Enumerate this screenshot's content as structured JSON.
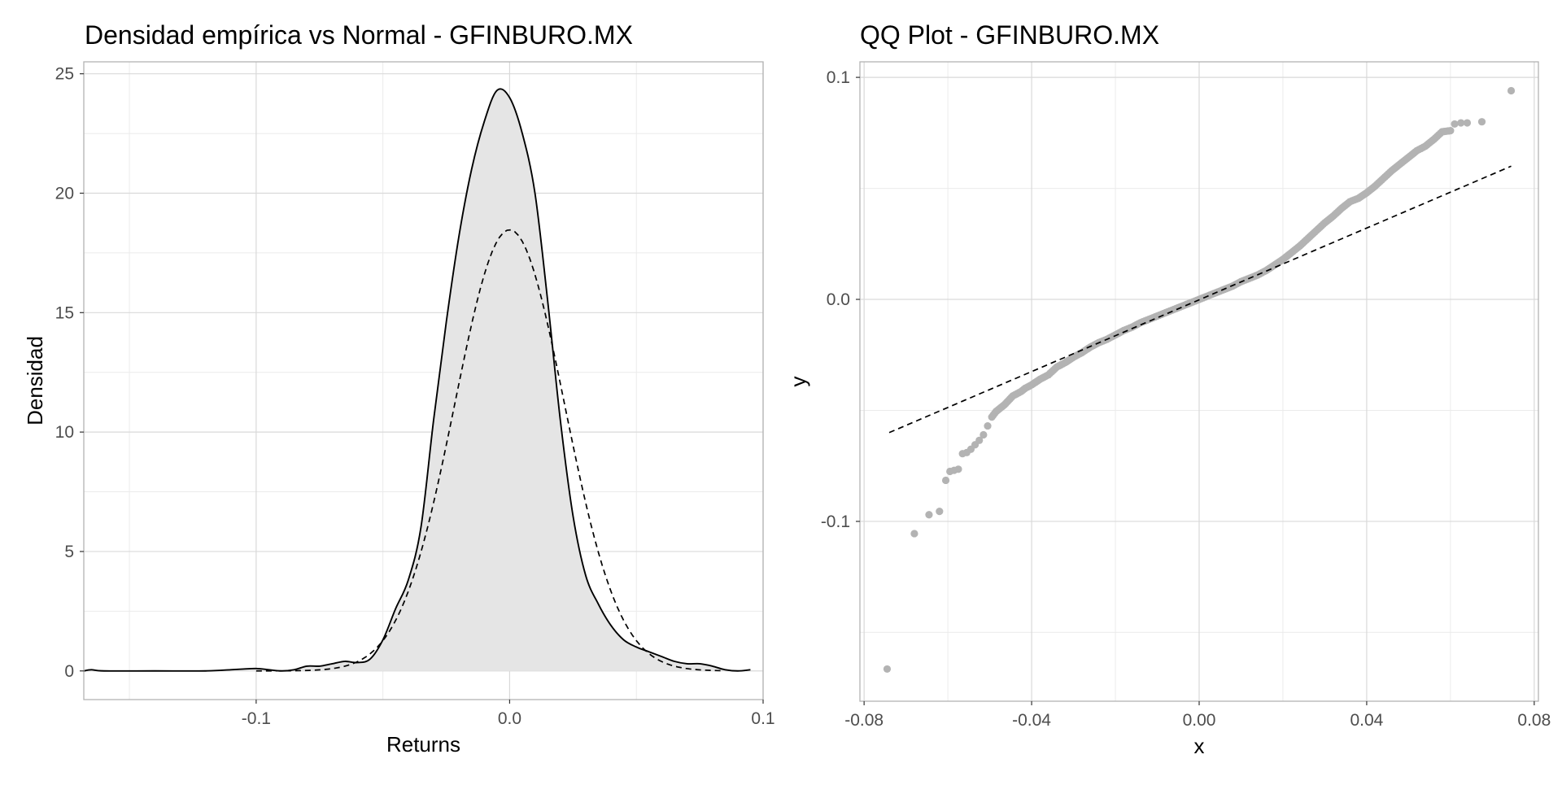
{
  "colors": {
    "background": "#ffffff",
    "panel_border": "#b3b3b3",
    "grid_major": "#d9d9d9",
    "grid_minor": "#ebebeb",
    "density_fill": "#e5e5e5",
    "line": "#000000",
    "points": "#b3b3b3"
  },
  "chart_data": [
    {
      "type": "area",
      "title": "Densidad empírica vs Normal - GFINBURO.MX",
      "xlabel": "Returns",
      "ylabel": "Densidad",
      "xlim": [
        -0.168,
        0.1
      ],
      "ylim": [
        -1.2,
        25.5
      ],
      "xticks": [
        -0.1,
        0.0,
        0.1
      ],
      "xtick_labels": [
        "-0.1",
        "0.0",
        "0.1"
      ],
      "yticks": [
        0,
        5,
        10,
        15,
        20,
        25
      ],
      "ytick_labels": [
        "0",
        "5",
        "10",
        "15",
        "20",
        "25"
      ],
      "grid": true,
      "legend": "none",
      "series": [
        {
          "style": "solid line with grey fill",
          "x": [
            -0.168,
            -0.165,
            -0.16,
            -0.14,
            -0.12,
            -0.11,
            -0.105,
            -0.1,
            -0.095,
            -0.09,
            -0.085,
            -0.08,
            -0.075,
            -0.07,
            -0.065,
            -0.06,
            -0.055,
            -0.05,
            -0.045,
            -0.04,
            -0.035,
            -0.03,
            -0.025,
            -0.02,
            -0.015,
            -0.01,
            -0.005,
            0.0,
            0.005,
            0.01,
            0.015,
            0.02,
            0.025,
            0.03,
            0.035,
            0.04,
            0.045,
            0.05,
            0.055,
            0.06,
            0.065,
            0.07,
            0.075,
            0.08,
            0.085,
            0.09,
            0.095
          ],
          "y": [
            0.0,
            0.05,
            0.0,
            0.0,
            0.0,
            0.05,
            0.08,
            0.1,
            0.05,
            0.0,
            0.05,
            0.2,
            0.2,
            0.3,
            0.4,
            0.35,
            0.5,
            1.3,
            2.6,
            3.8,
            6.0,
            10.5,
            14.6,
            18.2,
            21.0,
            23.0,
            24.3,
            24.0,
            22.5,
            20.0,
            15.5,
            10.5,
            6.5,
            4.0,
            2.8,
            1.9,
            1.3,
            1.0,
            0.8,
            0.6,
            0.4,
            0.3,
            0.3,
            0.2,
            0.05,
            0.0,
            0.05
          ]
        },
        {
          "style": "dashed line (normal)",
          "mean": 0.0,
          "sd": 0.0216
        }
      ]
    },
    {
      "type": "scatter",
      "title": "QQ Plot - GFINBURO.MX",
      "xlabel": "x",
      "ylabel": "y",
      "xlim": [
        -0.081,
        0.081
      ],
      "ylim": [
        -0.181,
        0.107
      ],
      "xticks": [
        -0.08,
        -0.04,
        0.0,
        0.04,
        0.08
      ],
      "xtick_labels": [
        "-0.08",
        "-0.04",
        "0.00",
        "0.04",
        "0.08"
      ],
      "yticks": [
        -0.1,
        0.0,
        0.1
      ],
      "ytick_labels": [
        "-0.1",
        "0.0",
        "0.1"
      ],
      "grid": true,
      "legend": "none",
      "reference_line": {
        "x": [
          -0.074,
          0.0745
        ],
        "y": [
          -0.06,
          0.06
        ],
        "style": "dashed"
      },
      "series": [
        {
          "x": [
            -0.0745,
            -0.068,
            -0.0645,
            -0.062,
            -0.0605,
            -0.0595,
            -0.0585,
            -0.0575,
            -0.0565,
            -0.0555,
            -0.0545,
            -0.0535,
            -0.0525,
            -0.0515,
            -0.0505,
            -0.0495,
            -0.0485,
            -0.0475,
            -0.0465,
            -0.0455,
            -0.0445,
            -0.0435,
            -0.0425,
            -0.0415,
            -0.04,
            -0.038,
            -0.036,
            -0.034,
            -0.032,
            -0.03,
            -0.028,
            -0.026,
            -0.024,
            -0.022,
            -0.02,
            -0.018,
            -0.016,
            -0.014,
            -0.012,
            -0.01,
            -0.008,
            -0.006,
            -0.004,
            -0.002,
            0.0,
            0.002,
            0.004,
            0.006,
            0.008,
            0.01,
            0.012,
            0.014,
            0.016,
            0.018,
            0.02,
            0.022,
            0.024,
            0.026,
            0.028,
            0.03,
            0.032,
            0.034,
            0.036,
            0.038,
            0.04,
            0.042,
            0.044,
            0.046,
            0.048,
            0.05,
            0.052,
            0.054,
            0.056,
            0.058,
            0.06,
            0.061,
            0.0625,
            0.064,
            0.0675,
            0.0745
          ],
          "y": [
            -0.1665,
            -0.1055,
            -0.097,
            -0.0955,
            -0.0815,
            -0.0775,
            -0.077,
            -0.0765,
            -0.0695,
            -0.069,
            -0.0675,
            -0.0655,
            -0.0635,
            -0.061,
            -0.057,
            -0.053,
            -0.0505,
            -0.049,
            -0.0475,
            -0.0455,
            -0.0435,
            -0.0425,
            -0.0415,
            -0.04,
            -0.0385,
            -0.036,
            -0.034,
            -0.0305,
            -0.0285,
            -0.026,
            -0.024,
            -0.0215,
            -0.0195,
            -0.018,
            -0.016,
            -0.014,
            -0.0125,
            -0.0105,
            -0.009,
            -0.0075,
            -0.006,
            -0.0045,
            -0.003,
            -0.0015,
            0.0,
            0.0015,
            0.003,
            0.0045,
            0.006,
            0.008,
            0.0095,
            0.011,
            0.013,
            0.0155,
            0.018,
            0.021,
            0.024,
            0.0275,
            0.031,
            0.0345,
            0.0375,
            0.041,
            0.044,
            0.0455,
            0.048,
            0.051,
            0.0545,
            0.058,
            0.061,
            0.064,
            0.067,
            0.069,
            0.072,
            0.0755,
            0.076,
            0.079,
            0.0795,
            0.0795,
            0.08,
            0.094
          ]
        }
      ]
    }
  ]
}
